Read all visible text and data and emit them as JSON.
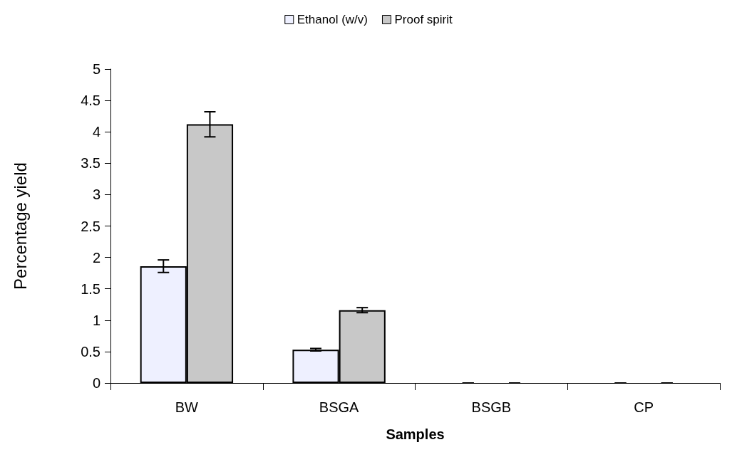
{
  "chart_data": {
    "type": "bar",
    "xlabel": "Samples",
    "ylabel": "Percentage yield",
    "categories": [
      "BW",
      "BSGA",
      "BSGB",
      "CP"
    ],
    "series": [
      {
        "name": "Ethanol (w/v)",
        "color": "#eef0ff",
        "values": [
          1.86,
          0.53,
          0,
          0
        ],
        "errors": [
          0.1,
          0.02,
          0,
          0
        ]
      },
      {
        "name": "Proof spirit",
        "color": "#c8c8c8",
        "values": [
          4.12,
          1.16,
          0,
          0
        ],
        "errors": [
          0.2,
          0.04,
          0,
          0
        ]
      }
    ],
    "ylim": [
      0,
      5
    ],
    "yticks": [
      0,
      0.5,
      1,
      1.5,
      2,
      2.5,
      3,
      3.5,
      4,
      4.5,
      5
    ],
    "grid": false,
    "legend": "top"
  }
}
